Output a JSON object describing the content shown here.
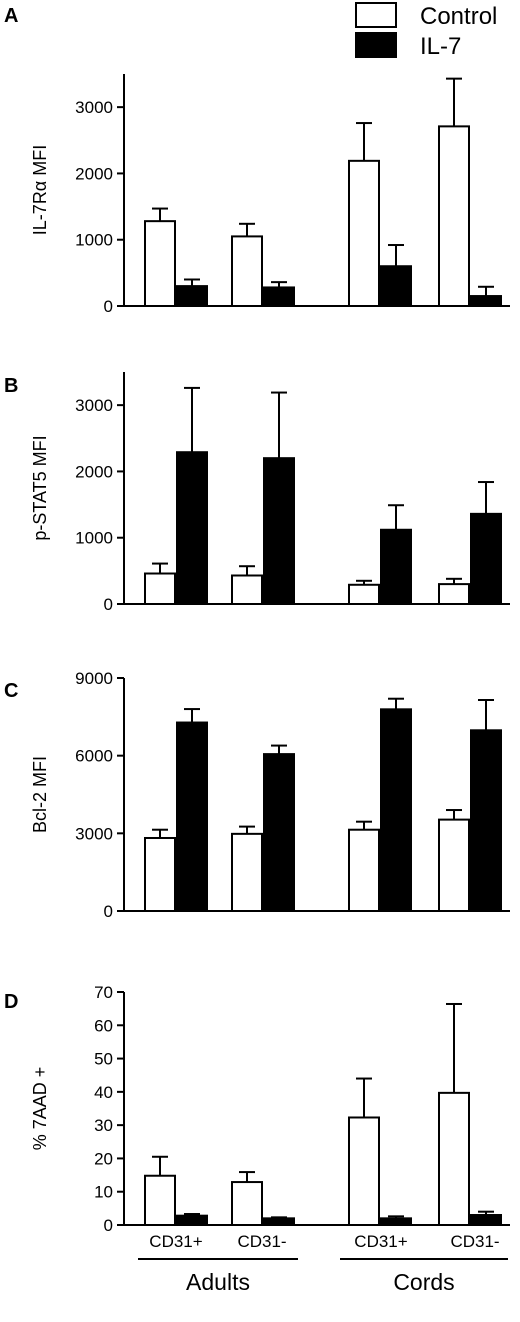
{
  "legend": {
    "entries": [
      {
        "label": "Control",
        "fill": "#ffffff"
      },
      {
        "label": "IL-7",
        "fill": "#000000"
      }
    ]
  },
  "x_labels": {
    "subgroups": [
      "CD31+",
      "CD31-",
      "CD31+",
      "CD31-"
    ],
    "groups": [
      "Adults",
      "Cords"
    ]
  },
  "colors": {
    "control_fill": "#ffffff",
    "il7_fill": "#000000",
    "stroke": "#000000"
  },
  "chart_data": [
    {
      "panel": "A",
      "type": "bar",
      "ylabel": "IL-7Rα MFI",
      "ylim": [
        0,
        3500
      ],
      "yticks": [
        0,
        1000,
        2000,
        3000
      ],
      "categories": [
        "Adults CD31+",
        "Adults CD31-",
        "Cords CD31+",
        "Cords CD31-"
      ],
      "series": [
        {
          "name": "Control",
          "values": [
            1280,
            1050,
            2190,
            2710
          ],
          "errors": [
            190,
            190,
            570,
            720
          ]
        },
        {
          "name": "IL-7",
          "values": [
            300,
            280,
            600,
            150
          ],
          "errors": [
            100,
            80,
            320,
            140
          ]
        }
      ]
    },
    {
      "panel": "B",
      "type": "bar",
      "ylabel": "p-STAT5 MFI",
      "ylim": [
        0,
        3500
      ],
      "yticks": [
        0,
        1000,
        2000,
        3000
      ],
      "categories": [
        "Adults CD31+",
        "Adults CD31-",
        "Cords CD31+",
        "Cords CD31-"
      ],
      "series": [
        {
          "name": "Control",
          "values": [
            460,
            430,
            290,
            300
          ],
          "errors": [
            150,
            140,
            60,
            80
          ]
        },
        {
          "name": "IL-7",
          "values": [
            2290,
            2200,
            1120,
            1360
          ],
          "errors": [
            970,
            990,
            370,
            480
          ]
        }
      ]
    },
    {
      "panel": "C",
      "type": "bar",
      "ylabel": "Bcl-2 MFI",
      "ylim": [
        0,
        9000
      ],
      "yticks": [
        0,
        3000,
        6000,
        9000
      ],
      "categories": [
        "Adults CD31+",
        "Adults CD31-",
        "Cords CD31+",
        "Cords CD31-"
      ],
      "series": [
        {
          "name": "Control",
          "values": [
            2820,
            2980,
            3140,
            3530
          ],
          "errors": [
            320,
            280,
            310,
            370
          ]
        },
        {
          "name": "IL-7",
          "values": [
            7280,
            6060,
            7790,
            6980
          ],
          "errors": [
            520,
            330,
            410,
            1170
          ]
        }
      ]
    },
    {
      "panel": "D",
      "type": "bar",
      "ylabel": "% 7AAD +",
      "ylim": [
        0,
        70
      ],
      "yticks": [
        0,
        10,
        20,
        30,
        40,
        50,
        60,
        70
      ],
      "categories": [
        "Adults CD31+",
        "Adults CD31-",
        "Cords CD31+",
        "Cords CD31-"
      ],
      "series": [
        {
          "name": "Control",
          "values": [
            14.8,
            12.9,
            32.3,
            39.7
          ],
          "errors": [
            5.7,
            3.0,
            11.7,
            26.7
          ]
        },
        {
          "name": "IL-7",
          "values": [
            2.8,
            2.0,
            2.0,
            3.0
          ],
          "errors": [
            0.5,
            0.3,
            0.6,
            1.0
          ]
        }
      ]
    }
  ]
}
